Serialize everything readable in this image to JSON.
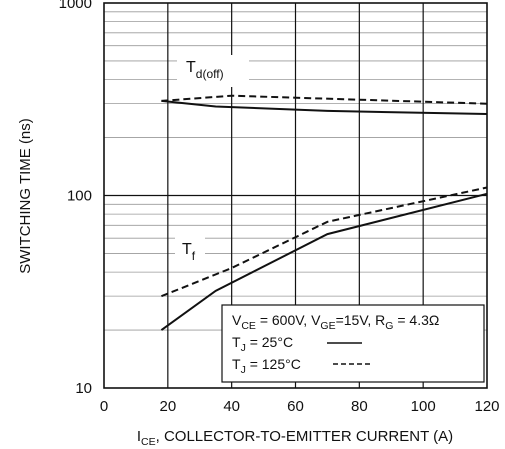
{
  "chart_data": {
    "type": "line",
    "xlabel": {
      "main": "I",
      "sub": "CE",
      "rest": ", COLLECTOR-TO-EMITTER CURRENT (A)"
    },
    "ylabel": "SWITCHING TIME (ns)",
    "xlim": [
      0,
      120
    ],
    "ylim": [
      10,
      1000
    ],
    "y_scale": "log",
    "grid": true,
    "x_ticks": [
      "0",
      "20",
      "40",
      "60",
      "80",
      "100",
      "120"
    ],
    "y_ticks": [
      "10",
      "100",
      "1000"
    ],
    "series": [
      {
        "label_main": "T",
        "label_sub": "d(off)",
        "condition": "TJ = 25°C",
        "style": "solid",
        "x": [
          18,
          35,
          70,
          120
        ],
        "y": [
          310,
          290,
          275,
          265
        ]
      },
      {
        "label_main": "T",
        "label_sub": "d(off)",
        "condition": "TJ = 125°C",
        "style": "dashed",
        "x": [
          18,
          40,
          120
        ],
        "y": [
          310,
          330,
          300
        ]
      },
      {
        "label_main": "T",
        "label_sub": "f",
        "condition": "TJ = 25°C",
        "style": "solid",
        "x": [
          18,
          35,
          70,
          120
        ],
        "y": [
          20,
          32,
          63,
          102
        ]
      },
      {
        "label_main": "T",
        "label_sub": "f",
        "condition": "TJ = 125°C",
        "style": "dashed",
        "x": [
          18,
          40,
          70,
          120
        ],
        "y": [
          30,
          42,
          73,
          110
        ]
      }
    ],
    "annotations": {
      "td_off": {
        "main": "T",
        "sub": "d(off)"
      },
      "tf": {
        "main": "T",
        "sub": "f"
      }
    },
    "legend": {
      "line1": [
        "V",
        "CE",
        " = 600V, V",
        "GE",
        "=15V, R",
        "G",
        " = 4.3Ω"
      ],
      "line2": [
        "T",
        "J",
        " = 25°C"
      ],
      "line3": [
        "T",
        "J",
        " = 125°C"
      ]
    }
  }
}
